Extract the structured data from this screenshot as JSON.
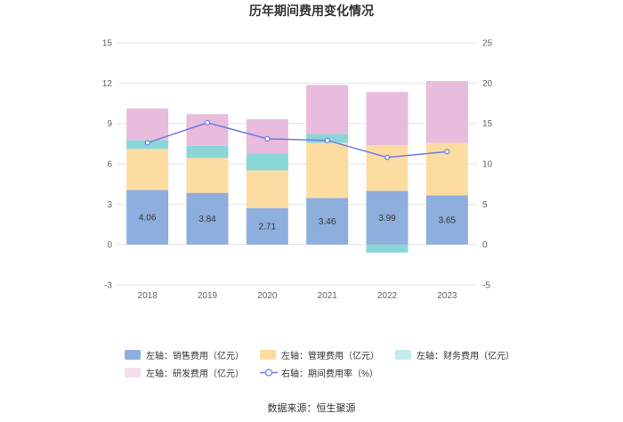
{
  "chart_data": {
    "type": "bar",
    "title": "历年期间费用变化情况",
    "categories": [
      "2018",
      "2019",
      "2020",
      "2021",
      "2022",
      "2023"
    ],
    "left_axis": {
      "ylim": [
        -3,
        15
      ],
      "ticks": [
        "-3",
        "0",
        "3",
        "6",
        "9",
        "12",
        "15"
      ]
    },
    "right_axis": {
      "ylim": [
        -5,
        25
      ],
      "ticks": [
        "-5",
        "0",
        "5",
        "10",
        "15",
        "20",
        "25"
      ]
    },
    "series": [
      {
        "name": "左轴：销售费用（亿元）",
        "type": "bar",
        "axis": "left",
        "color": "#8eaedd",
        "values": [
          4.06,
          3.84,
          2.71,
          3.46,
          3.99,
          3.65
        ],
        "labels": [
          "4.06",
          "3.84",
          "2.71",
          "3.46",
          "3.99",
          "3.65"
        ]
      },
      {
        "name": "左轴：管理费用（亿元）",
        "type": "bar",
        "axis": "left",
        "color": "#fddca2",
        "values": [
          3.05,
          2.6,
          2.8,
          4.1,
          3.4,
          3.9
        ]
      },
      {
        "name": "左轴：财务费用（亿元）",
        "type": "bar",
        "axis": "left",
        "color": "#8ad6d6",
        "values": [
          0.65,
          0.9,
          1.25,
          0.65,
          -0.6,
          0.0
        ]
      },
      {
        "name": "左轴：研发费用（亿元）",
        "type": "bar",
        "axis": "left",
        "color": "#e8bcdc",
        "values": [
          2.35,
          2.35,
          2.55,
          3.65,
          3.95,
          4.6
        ]
      },
      {
        "name": "右轴：期间费用率（%）",
        "type": "line",
        "axis": "right",
        "color": "#6e7be6",
        "values": [
          12.6,
          15.1,
          13.1,
          12.9,
          10.8,
          11.5
        ]
      }
    ]
  },
  "legend_rows": [
    [
      {
        "label": "左轴：销售费用（亿元）",
        "color": "#8eaedd",
        "kind": "bar"
      },
      {
        "label": "左轴：管理费用（亿元）",
        "color": "#fddca2",
        "kind": "bar"
      },
      {
        "label": "左轴：财务费用（亿元）",
        "color": "#c3ebeb",
        "kind": "bar"
      }
    ],
    [
      {
        "label": "左轴：研发费用（亿元）",
        "color": "#f4ddef",
        "kind": "bar"
      },
      {
        "label": "右轴：期间费用率（%）",
        "color": "#6e7be6",
        "kind": "line"
      }
    ]
  ],
  "source": "数据来源：恒生聚源"
}
